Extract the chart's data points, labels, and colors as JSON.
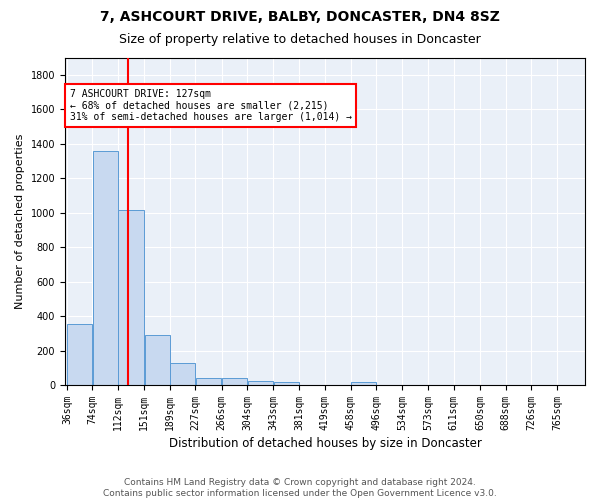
{
  "title": "7, ASHCOURT DRIVE, BALBY, DONCASTER, DN4 8SZ",
  "subtitle": "Size of property relative to detached houses in Doncaster",
  "xlabel": "Distribution of detached houses by size in Doncaster",
  "ylabel": "Number of detached properties",
  "bar_color": "#c8d9f0",
  "bar_edge_color": "#5b9bd5",
  "bg_color": "#eaf0f8",
  "grid_color": "white",
  "red_line_x": 127,
  "annotation_line1": "7 ASHCOURT DRIVE: 127sqm",
  "annotation_line2": "← 68% of detached houses are smaller (2,215)",
  "annotation_line3": "31% of semi-detached houses are larger (1,014) →",
  "annotation_box_color": "white",
  "annotation_box_edge": "red",
  "bin_edges": [
    36,
    74,
    112,
    151,
    189,
    227,
    266,
    304,
    343,
    381,
    419,
    458,
    496,
    534,
    573,
    611,
    650,
    688,
    726,
    765,
    803
  ],
  "bin_counts": [
    355,
    1360,
    1015,
    290,
    130,
    40,
    40,
    25,
    20,
    0,
    0,
    20,
    0,
    0,
    0,
    0,
    0,
    0,
    0,
    0
  ],
  "ylim": [
    0,
    1900
  ],
  "yticks": [
    0,
    200,
    400,
    600,
    800,
    1000,
    1200,
    1400,
    1600,
    1800
  ],
  "footer": "Contains HM Land Registry data © Crown copyright and database right 2024.\nContains public sector information licensed under the Open Government Licence v3.0.",
  "title_fontsize": 10,
  "subtitle_fontsize": 9,
  "xlabel_fontsize": 8.5,
  "ylabel_fontsize": 8,
  "tick_fontsize": 7,
  "footer_fontsize": 6.5
}
